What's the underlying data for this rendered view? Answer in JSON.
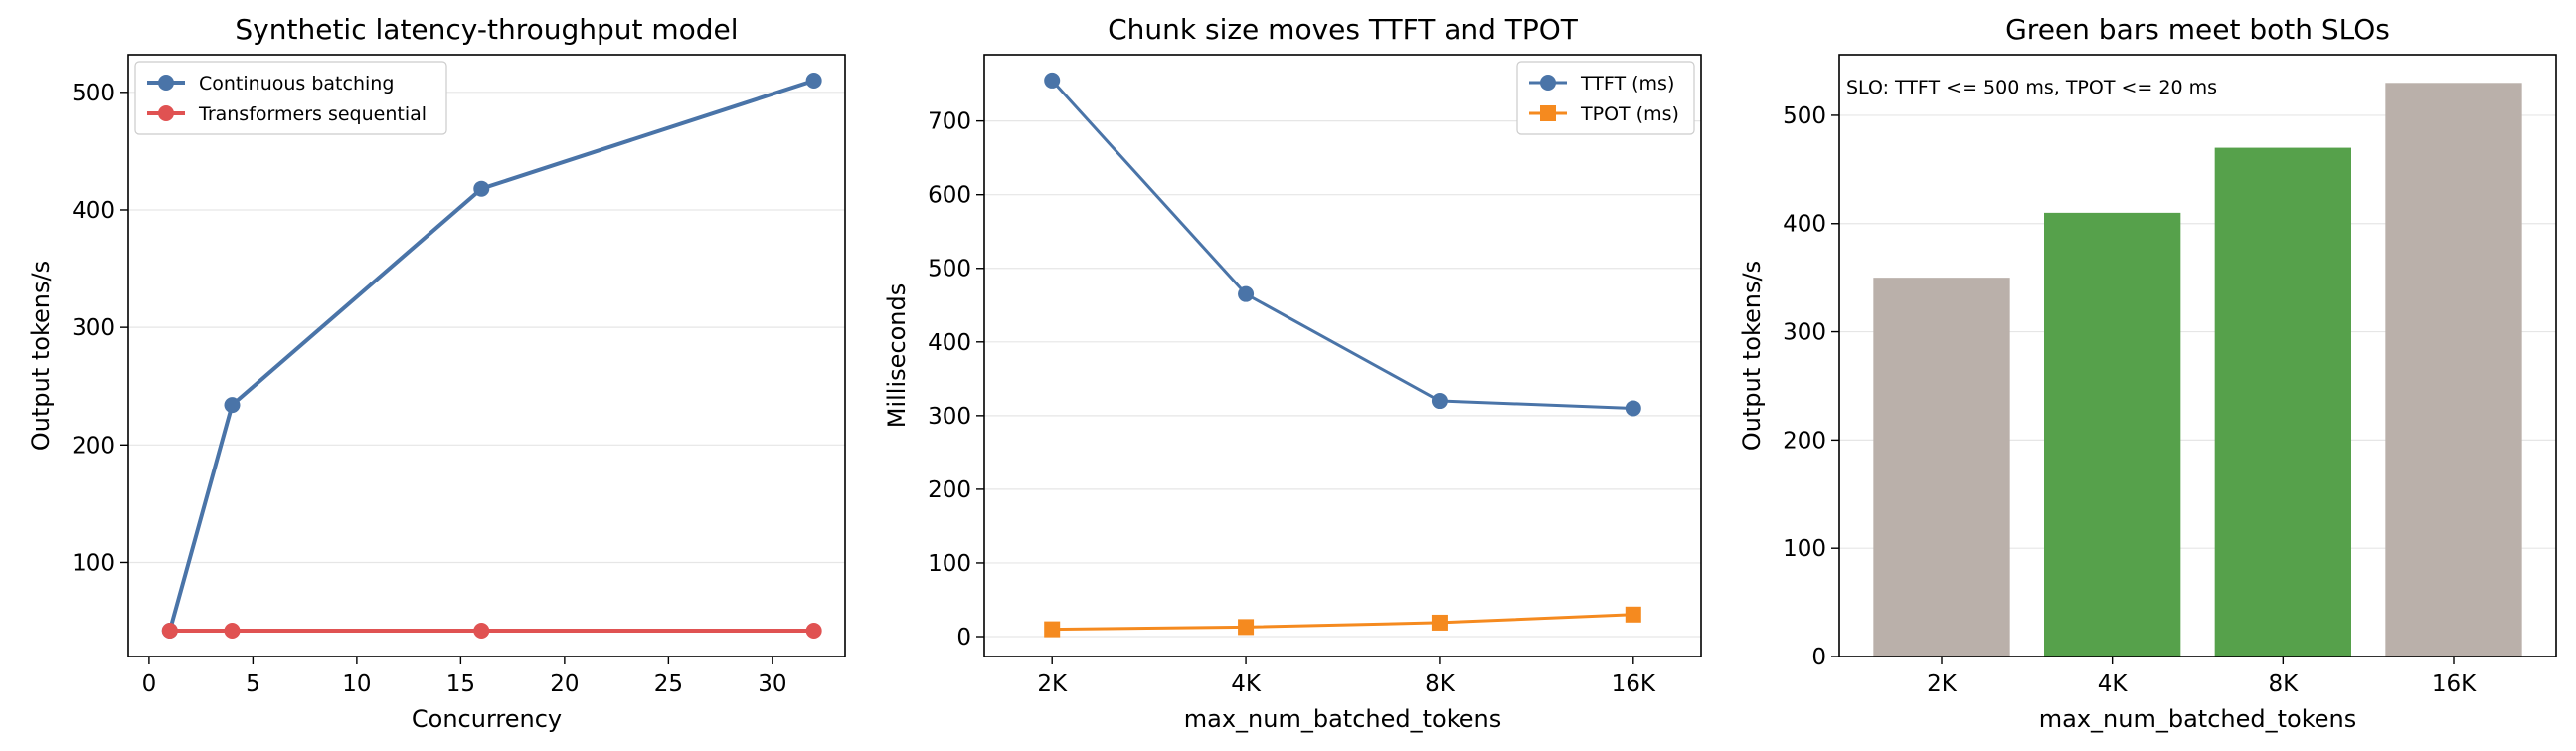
{
  "colors": {
    "blue": "#4a74a8",
    "red": "#e05252",
    "orange": "#f58a1f",
    "green": "#56a14b",
    "gray": "#bab0aa",
    "grid": "#e6e6e6"
  },
  "chart_data": [
    {
      "type": "line",
      "title": "Synthetic latency-throughput model",
      "xlabel": "Concurrency",
      "ylabel": "Output tokens/s",
      "xlim": [
        -1,
        33.5
      ],
      "ylim": [
        20,
        532
      ],
      "xticks": [
        0,
        5,
        10,
        15,
        20,
        25,
        30
      ],
      "yticks": [
        100,
        200,
        300,
        400,
        500
      ],
      "grid": "horizontal",
      "legend_position": "top-left",
      "series": [
        {
          "name": "Continuous batching",
          "color_key": "blue",
          "marker": "circle",
          "x": [
            1,
            4,
            16,
            32
          ],
          "y": [
            42,
            234,
            418,
            510
          ]
        },
        {
          "name": "Transformers sequential",
          "color_key": "red",
          "marker": "circle",
          "x": [
            1,
            4,
            16,
            32
          ],
          "y": [
            42,
            42,
            42,
            42
          ]
        }
      ]
    },
    {
      "type": "line",
      "title": "Chunk size moves TTFT and TPOT",
      "xlabel": "max_num_batched_tokens",
      "ylabel": "Milliseconds",
      "categories": [
        "2K",
        "4K",
        "8K",
        "16K"
      ],
      "ylim": [
        -27,
        790
      ],
      "yticks": [
        0,
        100,
        200,
        300,
        400,
        500,
        600,
        700
      ],
      "grid": "horizontal",
      "legend_position": "top-right",
      "series": [
        {
          "name": "TTFT (ms)",
          "color_key": "blue",
          "marker": "circle",
          "values": [
            755,
            465,
            320,
            310
          ]
        },
        {
          "name": "TPOT (ms)",
          "color_key": "orange",
          "marker": "square",
          "values": [
            10,
            13,
            19,
            30
          ]
        }
      ]
    },
    {
      "type": "bar",
      "title": "Green bars meet both SLOs",
      "xlabel": "max_num_batched_tokens",
      "ylabel": "Output tokens/s",
      "categories": [
        "2K",
        "4K",
        "8K",
        "16K"
      ],
      "values": [
        350,
        410,
        470,
        530
      ],
      "bar_color_keys": [
        "gray",
        "green",
        "green",
        "gray"
      ],
      "ylim": [
        0,
        556
      ],
      "yticks": [
        0,
        100,
        200,
        300,
        400,
        500
      ],
      "grid": "horizontal",
      "annotation": "SLO: TTFT <= 500 ms, TPOT <= 20 ms"
    }
  ]
}
